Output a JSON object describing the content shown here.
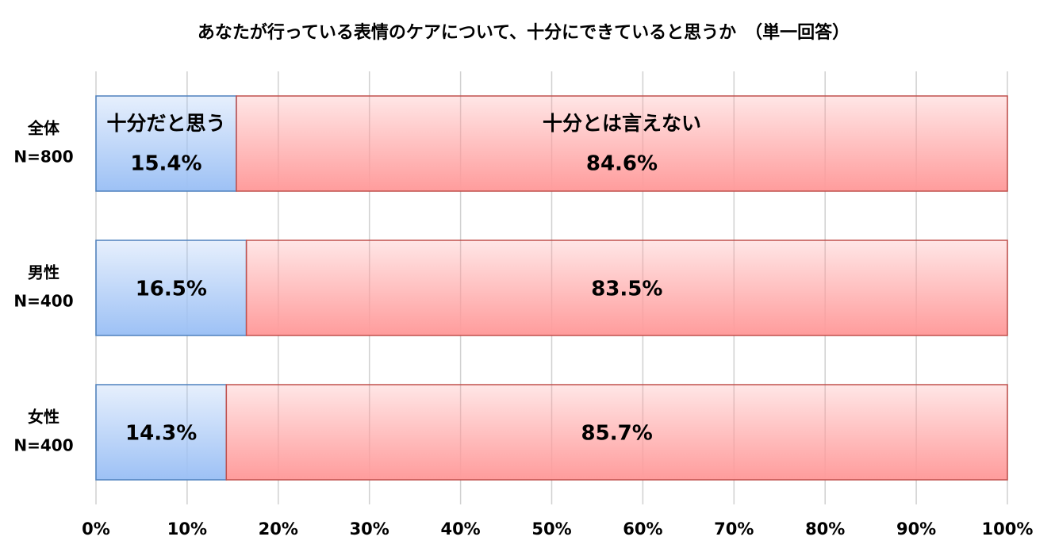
{
  "chart_data": {
    "type": "stacked-barh",
    "title": "あなたが行っている表情のケアについて、十分にできていると思うか　（単一回答）",
    "categories": [
      [
        "全体",
        "N=800"
      ],
      [
        "男性",
        "N=400"
      ],
      [
        "女性",
        "N=400"
      ]
    ],
    "series": [
      {
        "name": "十分だと思う",
        "color": "#9dc1f5",
        "edgecolor": "#4f81bd",
        "values": [
          15.4,
          16.5,
          14.3
        ],
        "value_labels": [
          "15.4%",
          "16.5%",
          "14.3%"
        ]
      },
      {
        "name": "十分とは言えない",
        "color": "#ff9c9c",
        "edgecolor": "#c0504d",
        "values": [
          84.6,
          83.5,
          85.7
        ],
        "value_labels": [
          "84.6%",
          "83.5%",
          "85.7%"
        ]
      }
    ],
    "xlim": [
      0,
      100
    ],
    "xticks": [
      {
        "value": 0,
        "label": "0%"
      },
      {
        "value": 10,
        "label": "10%"
      },
      {
        "value": 20,
        "label": "20%"
      },
      {
        "value": 30,
        "label": "30%"
      },
      {
        "value": 40,
        "label": "40%"
      },
      {
        "value": 50,
        "label": "50%"
      },
      {
        "value": 60,
        "label": "60%"
      },
      {
        "value": 70,
        "label": "70%"
      },
      {
        "value": 80,
        "label": "80%"
      },
      {
        "value": 90,
        "label": "90%"
      },
      {
        "value": 100,
        "label": "100%"
      }
    ],
    "grid": true
  }
}
